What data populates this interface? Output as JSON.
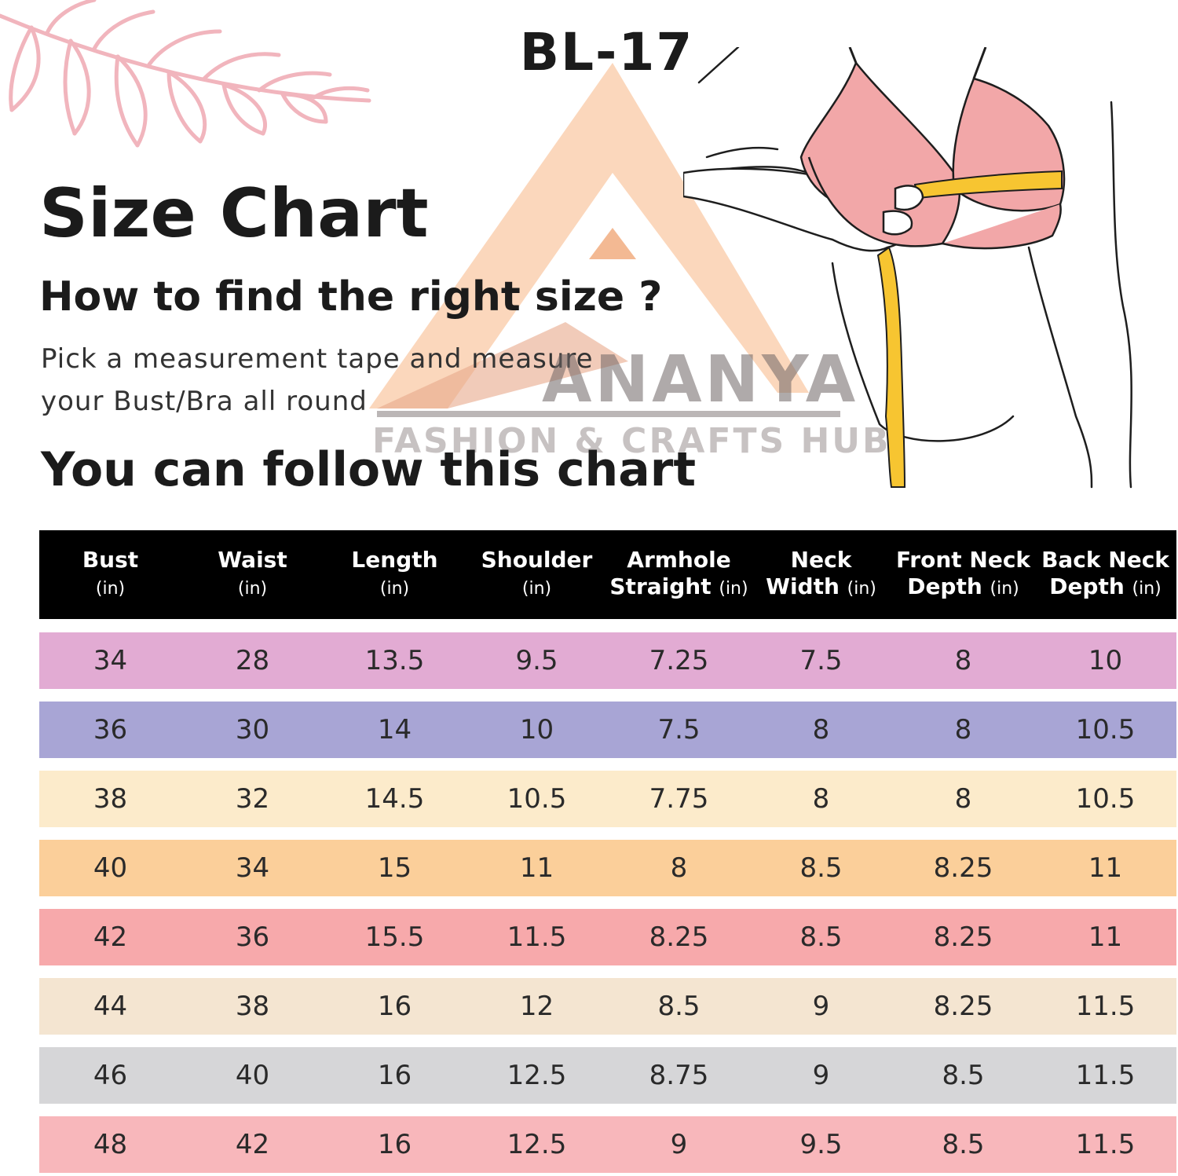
{
  "model_code": "BL-17",
  "title": "Size Chart",
  "subtitle": "How to find the right size ?",
  "instructions": {
    "line1": "Pick a measurement tape and measure",
    "line2": "your Bust/Bra all round"
  },
  "follow_text": "You can follow this chart",
  "watermark": {
    "brand": "ANANYA",
    "tagline": "FASHION & CRAFTS HUB"
  },
  "colors": {
    "header_bg": "#000000",
    "leaf": "#f1b5bd",
    "bra": "#f2a7a8",
    "tape": "#f7c531",
    "watermark_triangle": "#f9c9a5"
  },
  "size_table": {
    "columns": [
      {
        "line1": "Bust",
        "line2": "",
        "unit": "(in)"
      },
      {
        "line1": "Waist",
        "line2": "",
        "unit": "(in)"
      },
      {
        "line1": "Length",
        "line2": "",
        "unit": "(in)"
      },
      {
        "line1": "Shoulder",
        "line2": "",
        "unit": "(in)"
      },
      {
        "line1": "Armhole",
        "line2": "Straight",
        "unit": "(in)"
      },
      {
        "line1": "Neck",
        "line2": "Width",
        "unit": "(in)"
      },
      {
        "line1": "Front Neck",
        "line2": "Depth",
        "unit": "(in)"
      },
      {
        "line1": "Back Neck",
        "line2": "Depth",
        "unit": "(in)"
      }
    ],
    "rows": [
      {
        "color": "#e2abd3",
        "cells": [
          "34",
          "28",
          "13.5",
          "9.5",
          "7.25",
          "7.5",
          "8",
          "10"
        ]
      },
      {
        "color": "#a8a5d5",
        "cells": [
          "36",
          "30",
          "14",
          "10",
          "7.5",
          "8",
          "8",
          "10.5"
        ]
      },
      {
        "color": "#fcebcb",
        "cells": [
          "38",
          "32",
          "14.5",
          "10.5",
          "7.75",
          "8",
          "8",
          "10.5"
        ]
      },
      {
        "color": "#fbcf9a",
        "cells": [
          "40",
          "34",
          "15",
          "11",
          "8",
          "8.5",
          "8.25",
          "11"
        ]
      },
      {
        "color": "#f7a9ab",
        "cells": [
          "42",
          "36",
          "15.5",
          "11.5",
          "8.25",
          "8.5",
          "8.25",
          "11"
        ]
      },
      {
        "color": "#f4e5d1",
        "cells": [
          "44",
          "38",
          "16",
          "12",
          "8.5",
          "9",
          "8.25",
          "11.5"
        ]
      },
      {
        "color": "#d6d6d8",
        "cells": [
          "46",
          "40",
          "16",
          "12.5",
          "8.75",
          "9",
          "8.5",
          "11.5"
        ]
      },
      {
        "color": "#f8b7bb",
        "cells": [
          "48",
          "42",
          "16",
          "12.5",
          "9",
          "9.5",
          "8.5",
          "11.5"
        ]
      }
    ]
  }
}
